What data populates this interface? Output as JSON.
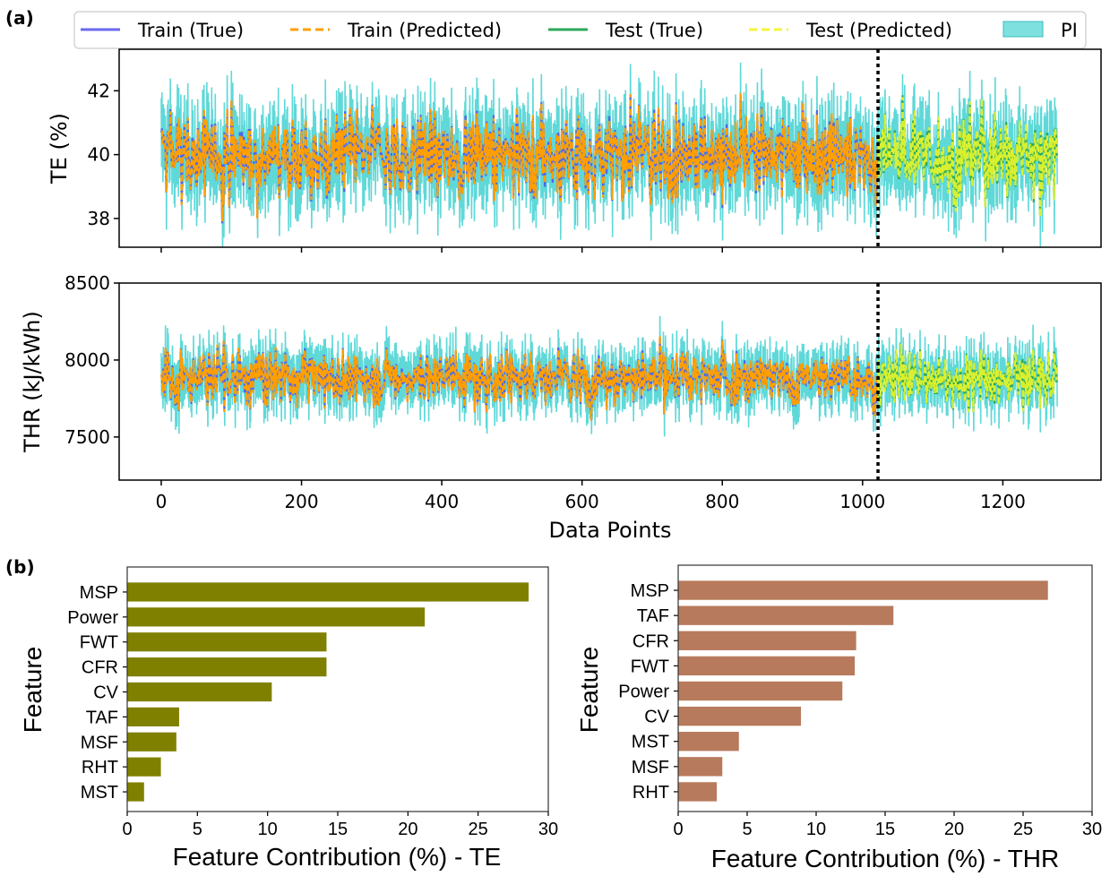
{
  "chart_data": [
    {
      "panel": "(a)",
      "type": "line",
      "legend": {
        "placement": "top",
        "entries": [
          {
            "label": "Train (True)",
            "color": "#6a6af0",
            "style": "solid"
          },
          {
            "label": "Train (Predicted)",
            "color": "#ff9f00",
            "style": "dashed"
          },
          {
            "label": "Test (True)",
            "color": "#2ca85a",
            "style": "solid"
          },
          {
            "label": "Test (Predicted)",
            "color": "#f5f53a",
            "style": "dashed"
          },
          {
            "label": "PI",
            "color": "#5fd8d8",
            "style": "band"
          }
        ]
      },
      "xlabel": "Data Points",
      "xlim": [
        -60,
        1340
      ],
      "xticks": [
        0,
        200,
        400,
        600,
        800,
        1000,
        1200
      ],
      "split_index": 1022,
      "n_points": 1278,
      "subplots": [
        {
          "ylabel": "TE (%)",
          "ylim": [
            37.1,
            43.3
          ],
          "yticks": [
            38,
            40,
            42
          ],
          "center": 40.0,
          "spread": 1.15
        },
        {
          "ylabel": "THR (kJ/kWh)",
          "ylim": [
            7220,
            8500
          ],
          "yticks": [
            7500,
            8000,
            8500
          ],
          "center": 7880,
          "spread": 150
        }
      ]
    },
    {
      "panel": "(b)",
      "type": "bar",
      "orientation": "horizontal",
      "color": "#808000",
      "ylabel": "Feature",
      "xlabel": "Feature Contribution (%) - TE",
      "xlim": [
        0,
        30
      ],
      "xticks": [
        0,
        5,
        10,
        15,
        20,
        25,
        30
      ],
      "categories": [
        "MSP",
        "Power",
        "FWT",
        "CFR",
        "CV",
        "TAF",
        "MSF",
        "RHT",
        "MST"
      ],
      "values": [
        28.6,
        21.2,
        14.2,
        14.2,
        10.3,
        3.7,
        3.5,
        2.4,
        1.2
      ]
    },
    {
      "panel": "",
      "type": "bar",
      "orientation": "horizontal",
      "color": "#b87a5c",
      "ylabel": "Feature",
      "xlabel": "Feature Contribution (%) - THR",
      "xlim": [
        0,
        30
      ],
      "xticks": [
        0,
        5,
        10,
        15,
        20,
        25,
        30
      ],
      "categories": [
        "MSP",
        "TAF",
        "CFR",
        "FWT",
        "Power",
        "CV",
        "MST",
        "MSF",
        "RHT"
      ],
      "values": [
        26.8,
        15.6,
        12.9,
        12.8,
        11.9,
        8.9,
        4.4,
        3.2,
        2.8
      ]
    }
  ]
}
